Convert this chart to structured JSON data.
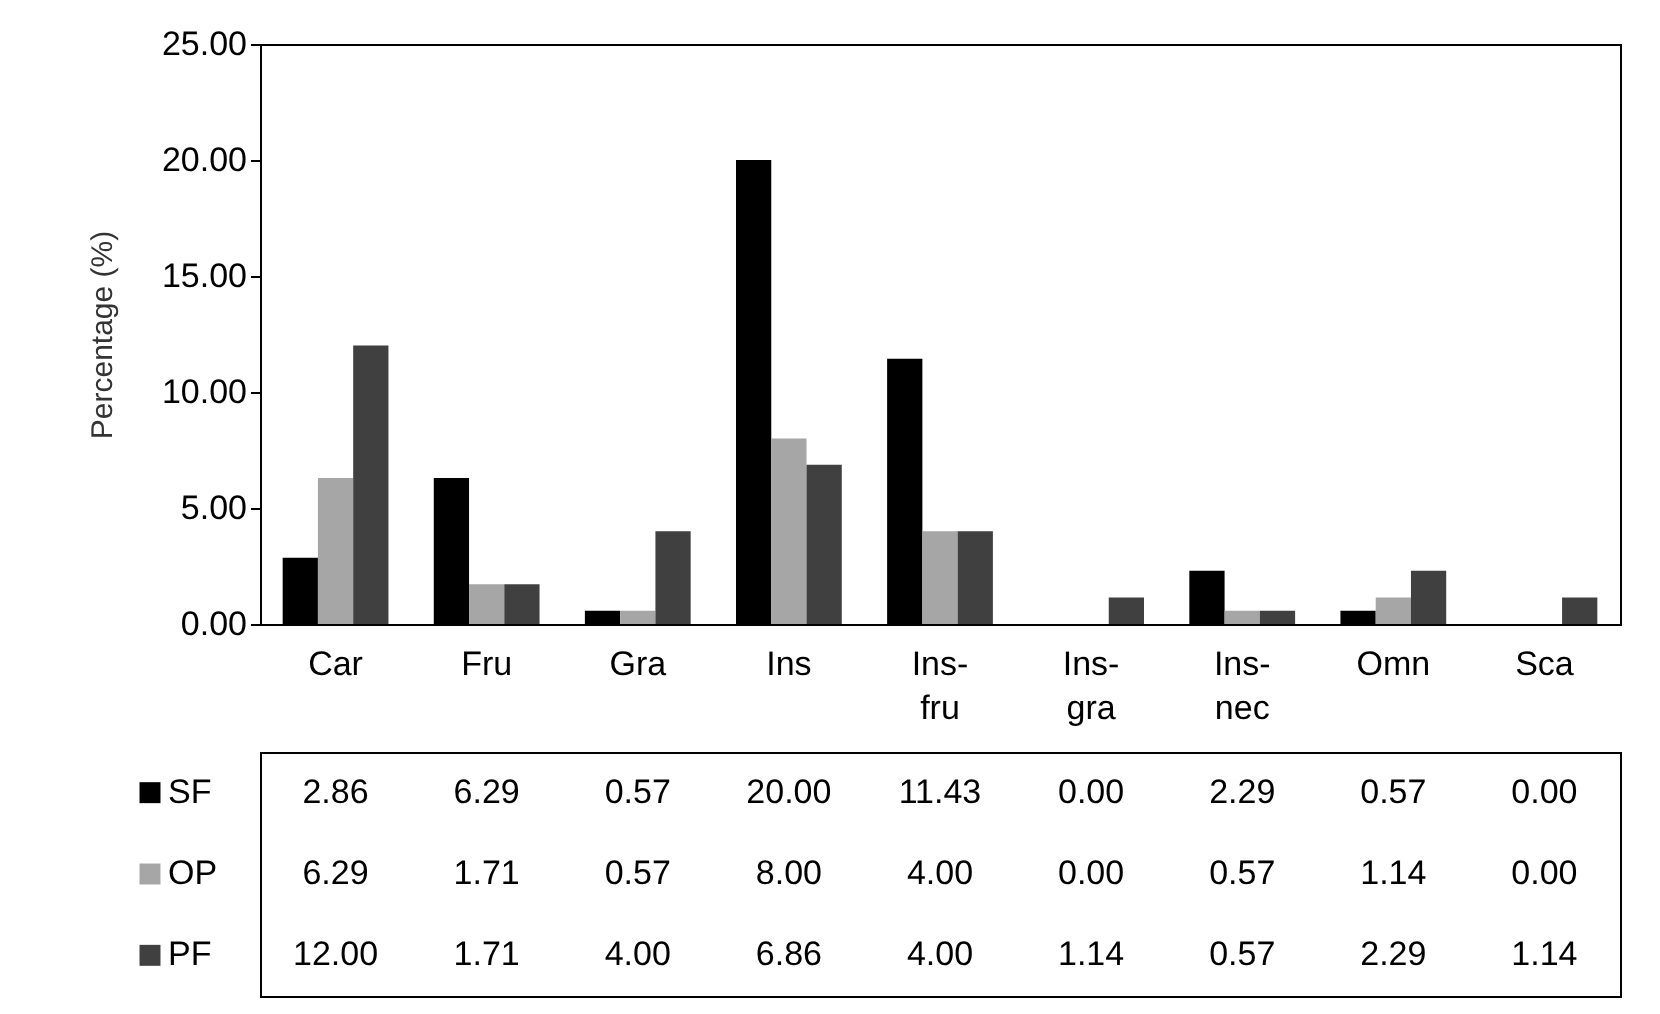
{
  "chart_data": {
    "type": "bar",
    "ylabel": "Percentage (%)",
    "categories": [
      "Car",
      "Fru",
      "Gra",
      "Ins",
      "Ins-fru",
      "Ins-gra",
      "Ins-nec",
      "Omn",
      "Sca"
    ],
    "series": [
      {
        "name": "SF",
        "color": "#000000",
        "values": [
          2.86,
          6.29,
          0.57,
          20.0,
          11.43,
          0.0,
          2.29,
          0.57,
          0.0
        ],
        "value_labels": [
          "2.86",
          "6.29",
          "0.57",
          "20.00",
          "11.43",
          "0.00",
          "2.29",
          "0.57",
          "0.00"
        ]
      },
      {
        "name": "OP",
        "color": "#a6a6a6",
        "values": [
          6.29,
          1.71,
          0.57,
          8.0,
          4.0,
          0.0,
          0.57,
          1.14,
          0.0
        ],
        "value_labels": [
          "6.29",
          "1.71",
          "0.57",
          "8.00",
          "4.00",
          "0.00",
          "0.57",
          "1.14",
          "0.00"
        ]
      },
      {
        "name": "PF",
        "color": "#404040",
        "values": [
          12.0,
          1.71,
          4.0,
          6.86,
          4.0,
          1.14,
          0.57,
          2.29,
          1.14
        ],
        "value_labels": [
          "12.00",
          "1.71",
          "4.00",
          "6.86",
          "4.00",
          "1.14",
          "0.57",
          "2.29",
          "1.14"
        ]
      }
    ],
    "ylim": [
      0,
      25
    ],
    "yticks": [
      {
        "value": 0,
        "label": "0.00"
      },
      {
        "value": 5,
        "label": "5.00"
      },
      {
        "value": 10,
        "label": "10.00"
      },
      {
        "value": 15,
        "label": "15.00"
      },
      {
        "value": 20,
        "label": "20.00"
      },
      {
        "value": 25,
        "label": "25.00"
      }
    ],
    "legend": "bottom",
    "grid": false
  }
}
